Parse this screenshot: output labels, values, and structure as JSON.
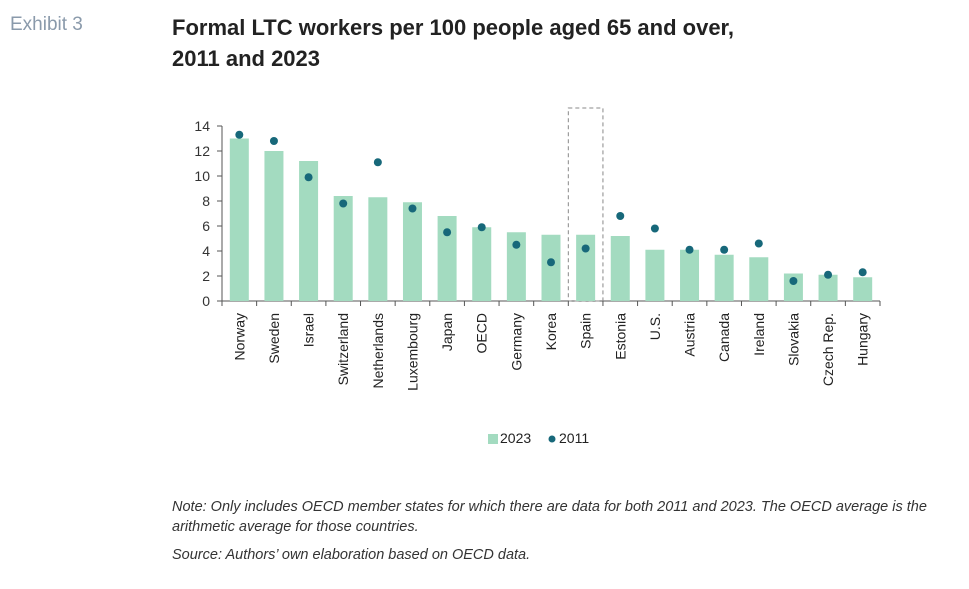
{
  "exhibit_label": "Exhibit 3",
  "title_line1": "Formal LTC workers per 100 people aged 65 and over,",
  "title_line2": "2011 and 2023",
  "note": "Note: Only includes OECD member states for which there are data for both 2011 and 2023. The OECD average is the arithmetic average for those countries.",
  "source": "Source: Authors’ own elaboration based on OECD data.",
  "colors": {
    "bar": "#a3dbc0",
    "dot": "#17687a",
    "axis": "#555555",
    "highlight_box": "#888888"
  },
  "chart_data": {
    "type": "bar",
    "title": "Formal LTC workers per 100 people aged 65 and over, 2011 and 2023",
    "xlabel": "",
    "ylabel": "",
    "ylim": [
      0,
      14
    ],
    "yticks": [
      0,
      2,
      4,
      6,
      8,
      10,
      12,
      14
    ],
    "grid": false,
    "legend_position": "bottom-center",
    "highlight_category": "Spain",
    "categories": [
      "Norway",
      "Sweden",
      "Israel",
      "Switzerland",
      "Netherlands",
      "Luxembourg",
      "Japan",
      "OECD",
      "Germany",
      "Korea",
      "Spain",
      "Estonia",
      "U.S.",
      "Austria",
      "Canada",
      "Ireland",
      "Slovakia",
      "Czech Rep.",
      "Hungary"
    ],
    "series": [
      {
        "name": "2023",
        "kind": "bar",
        "values": [
          13.0,
          12.0,
          11.2,
          8.4,
          8.3,
          7.9,
          6.8,
          5.9,
          5.5,
          5.3,
          5.3,
          5.2,
          4.1,
          4.1,
          3.7,
          3.5,
          2.2,
          2.1,
          1.9
        ]
      },
      {
        "name": "2011",
        "kind": "dot",
        "values": [
          13.3,
          12.8,
          9.9,
          7.8,
          11.1,
          7.4,
          5.5,
          5.9,
          4.5,
          3.1,
          4.2,
          6.8,
          5.8,
          4.1,
          4.1,
          4.6,
          1.6,
          2.1,
          2.3
        ]
      }
    ]
  }
}
